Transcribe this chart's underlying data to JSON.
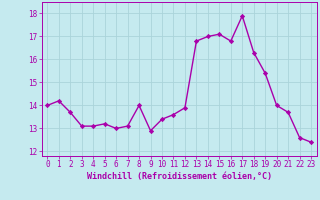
{
  "x": [
    0,
    1,
    2,
    3,
    4,
    5,
    6,
    7,
    8,
    9,
    10,
    11,
    12,
    13,
    14,
    15,
    16,
    17,
    18,
    19,
    20,
    21,
    22,
    23
  ],
  "y": [
    14.0,
    14.2,
    13.7,
    13.1,
    13.1,
    13.2,
    13.0,
    13.1,
    14.0,
    12.9,
    13.4,
    13.6,
    13.9,
    16.8,
    17.0,
    17.1,
    16.8,
    17.9,
    16.3,
    15.4,
    14.0,
    13.7,
    12.6,
    12.4
  ],
  "line_color": "#aa00aa",
  "marker": "D",
  "marker_size": 2.2,
  "line_width": 1.0,
  "bg_color": "#c5eaef",
  "grid_color": "#aad4da",
  "xlabel": "Windchill (Refroidissement éolien,°C)",
  "xlabel_color": "#aa00aa",
  "tick_color": "#aa00aa",
  "label_color": "#aa00aa",
  "ylim": [
    11.8,
    18.5
  ],
  "xlim": [
    -0.5,
    23.5
  ],
  "yticks": [
    12,
    13,
    14,
    15,
    16,
    17,
    18
  ],
  "xticks": [
    0,
    1,
    2,
    3,
    4,
    5,
    6,
    7,
    8,
    9,
    10,
    11,
    12,
    13,
    14,
    15,
    16,
    17,
    18,
    19,
    20,
    21,
    22,
    23
  ],
  "tick_fontsize": 5.5,
  "xlabel_fontsize": 6.0
}
